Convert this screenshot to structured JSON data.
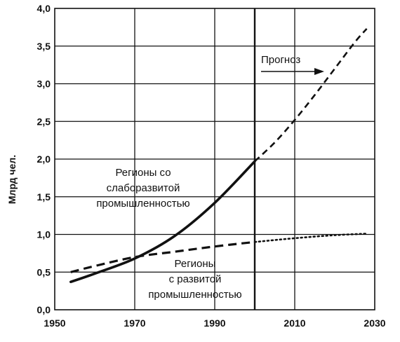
{
  "chart_data": {
    "type": "line",
    "title": "",
    "xlabel": "",
    "ylabel": "Млрд чел.",
    "xlim": [
      1950,
      2030
    ],
    "ylim": [
      0,
      4.0
    ],
    "x_ticks": [
      "1950",
      "1970",
      "1990",
      "2010",
      "2030"
    ],
    "y_ticks": [
      "0,0",
      "0,5",
      "1,0",
      "1,5",
      "2,0",
      "2,5",
      "3,0",
      "3,5",
      "4,0"
    ],
    "grid": true,
    "forecast_divider_x": 2000,
    "forecast_label": "Прогноз",
    "series": [
      {
        "label_lines": [
          "Регионы со",
          "слаборазвитой",
          "промышленностью"
        ],
        "color": "#111111",
        "actual": {
          "x": [
            1954,
            1960,
            1970,
            1980,
            1990,
            2000
          ],
          "y": [
            0.37,
            0.48,
            0.68,
            0.98,
            1.42,
            1.97
          ]
        },
        "forecast": {
          "x": [
            2000,
            2005,
            2010,
            2015,
            2020,
            2025,
            2028
          ],
          "y": [
            1.97,
            2.22,
            2.52,
            2.85,
            3.2,
            3.55,
            3.73
          ]
        }
      },
      {
        "label_lines": [
          "Регионы",
          "с развитой",
          "промышленностью"
        ],
        "color": "#111111",
        "actual": {
          "x": [
            1954,
            1960,
            1970,
            1980,
            1990,
            2000
          ],
          "y": [
            0.5,
            0.58,
            0.7,
            0.77,
            0.84,
            0.9
          ]
        },
        "forecast": {
          "x": [
            2000,
            2010,
            2020,
            2028
          ],
          "y": [
            0.9,
            0.95,
            0.99,
            1.01
          ]
        }
      }
    ]
  }
}
